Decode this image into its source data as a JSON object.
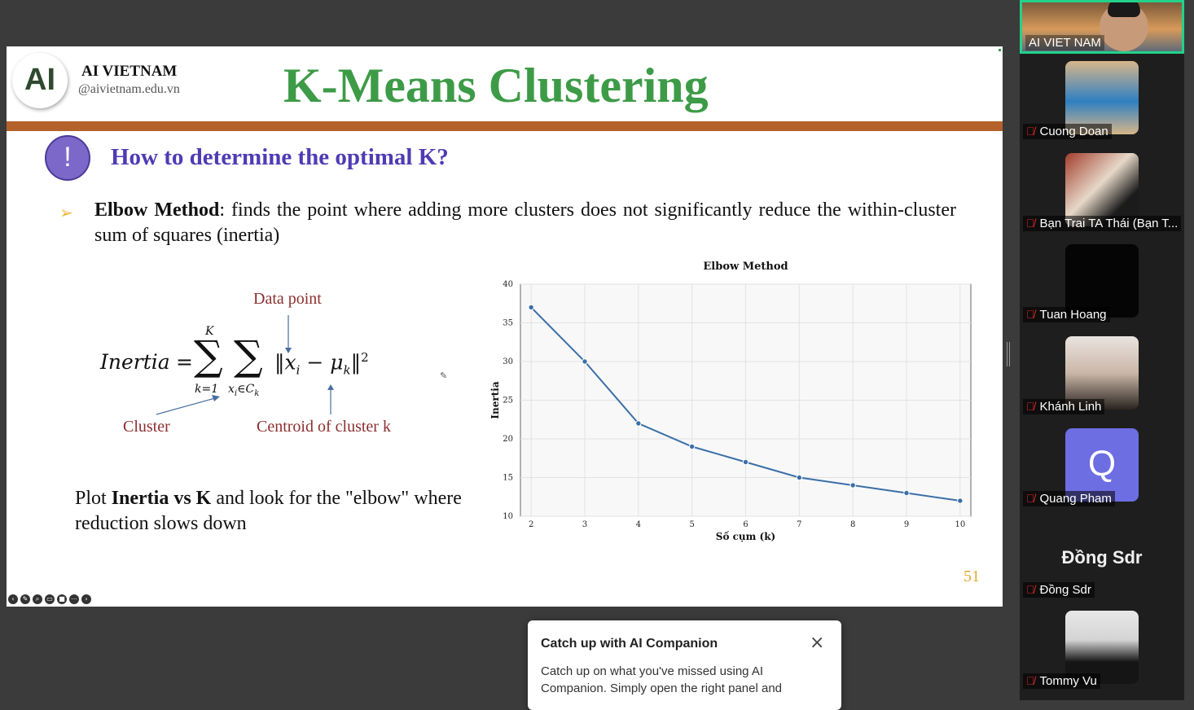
{
  "slide": {
    "org_name": "AI VIETNAM",
    "org_url": "@aivietnam.edu.vn",
    "logo_text": "AI",
    "title": "K-Means Clustering",
    "subheading": "How to determine the optimal K?",
    "alert_symbol": "!",
    "bullet_bold": "Elbow Method",
    "bullet_rest": ": finds the point where adding more clusters does not significantly reduce the within-cluster sum of squares (inertia)",
    "formula_labels": {
      "data_point": "Data point",
      "cluster": "Cluster",
      "centroid": "Centroid of cluster k"
    },
    "formula": {
      "lhs": "Inertia",
      "equals": "=",
      "sum_upper": "K",
      "sum_lower": "k=1",
      "inner_lower": "x",
      "inner_lower_sub": "i",
      "inner_lower_tail": "∈C",
      "inner_lower_tail_sub": "k",
      "norm_x": "x",
      "norm_x_sub": "i",
      "minus": "−",
      "norm_mu": "μ",
      "norm_mu_sub": "k",
      "power": "2"
    },
    "plot_text_pre": "Plot ",
    "plot_text_bold": "Inertia vs K",
    "plot_text_post": " and look for the \"elbow\" where reduction slows down",
    "page_number": "51",
    "accent_green": "#3d9b47",
    "accent_brown": "#b5612b",
    "accent_purple": "#4e3bb4"
  },
  "chart_data": {
    "type": "line",
    "title": "Elbow Method",
    "xlabel": "Số cụm (k)",
    "ylabel": "Inertia",
    "x": [
      2,
      3,
      4,
      5,
      6,
      7,
      8,
      9,
      10
    ],
    "series": [
      {
        "values": [
          37,
          30,
          22,
          19,
          17,
          15,
          14,
          13,
          12
        ]
      }
    ],
    "xticks": [
      "2",
      "3",
      "4",
      "5",
      "6",
      "7",
      "8",
      "9",
      "10"
    ],
    "yticks": [
      "10",
      "15",
      "20",
      "25",
      "30",
      "35",
      "40"
    ],
    "xlim": [
      1.8,
      10.2
    ],
    "ylim": [
      10,
      40
    ],
    "grid": true,
    "color": "#3b6fa8"
  },
  "participants": {
    "active_name": "AI VIET NAM",
    "list": [
      {
        "name": "Cuong Doan"
      },
      {
        "name": "Bạn Trai TA Thái (Bạn T..."
      },
      {
        "name": "Tuan Hoang"
      },
      {
        "name": "Khánh Linh"
      },
      {
        "name": "Quang Pham",
        "initial": "Q"
      },
      {
        "name": "Đồng Sdr",
        "display": "Đồng Sdr"
      },
      {
        "name": "Tommy Vu"
      }
    ]
  },
  "popup": {
    "title": "Catch up with AI Companion",
    "body": "Catch up on what you've missed using AI Companion. Simply open the right panel and",
    "close_icon": "×"
  }
}
